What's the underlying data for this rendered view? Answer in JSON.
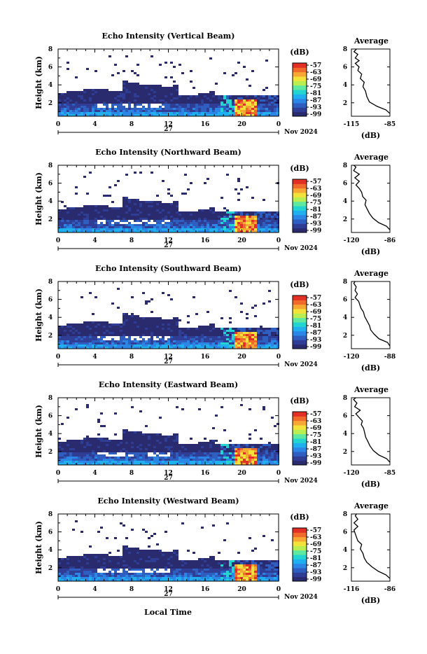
{
  "shared": {
    "day_label": "27",
    "month_year": "Nov 2024",
    "xlabel": "Local Time",
    "ylabel": "Height (km)",
    "unit": "(dB)",
    "avg_title": "Average",
    "x_ticks": [
      "0",
      "4",
      "8",
      "12",
      "16",
      "20",
      "0"
    ],
    "y_ticks": [
      "2",
      "4",
      "6",
      "8"
    ],
    "avg_y_ticks": [
      "2",
      "4",
      "6",
      "8"
    ],
    "colorbar_labels": [
      "-57",
      "-63",
      "-69",
      "-75",
      "-81",
      "-87",
      "-93",
      "-99"
    ],
    "colorbar_colors": [
      "#2a2a6e",
      "#2f3d95",
      "#2e5fc0",
      "#2c86e6",
      "#20b0f0",
      "#24d4d0",
      "#5fe8a0",
      "#b9ee52",
      "#f3e23a",
      "#f7a834",
      "#f06a2c",
      "#e23024"
    ]
  },
  "chart_data": [
    {
      "type": "heatmap",
      "title": "Echo Intensity (Vertical Beam)",
      "xlabel": "Local Time",
      "ylabel": "Height (km)",
      "xlim": [
        0,
        24
      ],
      "ylim": [
        0.5,
        8
      ],
      "colorbar": {
        "unit": "dB",
        "range": [
          -99,
          -57
        ]
      },
      "average": {
        "title": "Average",
        "xlabel": "(dB)",
        "x_ticks": [
          "-115",
          "-85"
        ],
        "xlim": [
          -115,
          -85
        ],
        "profile": [
          [
            -85,
            0.8
          ],
          [
            -88,
            1.2
          ],
          [
            -95,
            1.6
          ],
          [
            -101,
            2.1
          ],
          [
            -103,
            2.7
          ],
          [
            -104,
            3.3
          ],
          [
            -106,
            3.8
          ],
          [
            -105,
            4.3
          ],
          [
            -108,
            4.7
          ],
          [
            -107,
            5.2
          ],
          [
            -110,
            5.6
          ],
          [
            -109,
            6.0
          ],
          [
            -112,
            6.4
          ],
          [
            -109,
            6.7
          ],
          [
            -112,
            7.0
          ],
          [
            -110,
            7.4
          ],
          [
            -113,
            7.7
          ],
          [
            -111,
            8.0
          ]
        ]
      }
    },
    {
      "type": "heatmap",
      "title": "Echo Intensity (Northward Beam)",
      "xlabel": "Local Time",
      "ylabel": "Height (km)",
      "xlim": [
        0,
        24
      ],
      "ylim": [
        0.5,
        8
      ],
      "colorbar": {
        "unit": "dB",
        "range": [
          -99,
          -57
        ]
      },
      "average": {
        "title": "Average",
        "xlabel": "(dB)",
        "x_ticks": [
          "-120",
          "-86"
        ],
        "xlim": [
          -120,
          -86
        ],
        "profile": [
          [
            -86,
            0.8
          ],
          [
            -89,
            1.2
          ],
          [
            -96,
            1.6
          ],
          [
            -101,
            2.1
          ],
          [
            -104,
            2.6
          ],
          [
            -106,
            3.1
          ],
          [
            -108,
            3.6
          ],
          [
            -107,
            4.1
          ],
          [
            -110,
            4.5
          ],
          [
            -111,
            5.0
          ],
          [
            -113,
            5.4
          ],
          [
            -116,
            5.8
          ],
          [
            -113,
            6.2
          ],
          [
            -117,
            6.6
          ],
          [
            -113,
            7.0
          ],
          [
            -118,
            7.4
          ],
          [
            -116,
            7.8
          ],
          [
            -118,
            8.0
          ]
        ]
      }
    },
    {
      "type": "heatmap",
      "title": "Echo Intensity (Southward Beam)",
      "xlabel": "Local Time",
      "ylabel": "Height (km)",
      "xlim": [
        0,
        24
      ],
      "ylim": [
        0.5,
        8
      ],
      "colorbar": {
        "unit": "dB",
        "range": [
          -99,
          -57
        ]
      },
      "average": {
        "title": "Average",
        "xlabel": "(dB)",
        "x_ticks": [
          "-120",
          "-88"
        ],
        "xlim": [
          -120,
          -88
        ],
        "profile": [
          [
            -88,
            0.8
          ],
          [
            -90,
            1.2
          ],
          [
            -97,
            1.6
          ],
          [
            -101,
            2.1
          ],
          [
            -104,
            2.6
          ],
          [
            -105,
            3.1
          ],
          [
            -107,
            3.6
          ],
          [
            -109,
            4.1
          ],
          [
            -110,
            4.6
          ],
          [
            -112,
            5.0
          ],
          [
            -113,
            5.4
          ],
          [
            -114,
            5.8
          ],
          [
            -117,
            6.2
          ],
          [
            -115,
            6.6
          ],
          [
            -117,
            7.0
          ],
          [
            -116,
            7.4
          ],
          [
            -118,
            7.8
          ],
          [
            -117,
            8.0
          ]
        ]
      }
    },
    {
      "type": "heatmap",
      "title": "Echo Intensity (Eastward Beam)",
      "xlabel": "Local Time",
      "ylabel": "Height (km)",
      "xlim": [
        0,
        24
      ],
      "ylim": [
        0.5,
        8
      ],
      "colorbar": {
        "unit": "dB",
        "range": [
          -99,
          -57
        ]
      },
      "average": {
        "title": "Average",
        "xlabel": "(dB)",
        "x_ticks": [
          "-120",
          "-85"
        ],
        "xlim": [
          -120,
          -85
        ],
        "profile": [
          [
            -85,
            0.8
          ],
          [
            -88,
            1.2
          ],
          [
            -95,
            1.6
          ],
          [
            -100,
            2.1
          ],
          [
            -103,
            2.6
          ],
          [
            -105,
            3.1
          ],
          [
            -107,
            3.6
          ],
          [
            -108,
            4.1
          ],
          [
            -109,
            4.6
          ],
          [
            -111,
            5.0
          ],
          [
            -110,
            5.4
          ],
          [
            -113,
            5.8
          ],
          [
            -116,
            6.2
          ],
          [
            -112,
            6.6
          ],
          [
            -117,
            7.0
          ],
          [
            -115,
            7.4
          ],
          [
            -118,
            7.8
          ],
          [
            -116,
            8.0
          ]
        ]
      }
    },
    {
      "type": "heatmap",
      "title": "Echo Intensity (Westward Beam)",
      "xlabel": "Local Time",
      "ylabel": "Height (km)",
      "xlim": [
        0,
        24
      ],
      "ylim": [
        0.5,
        8
      ],
      "colorbar": {
        "unit": "dB",
        "range": [
          -99,
          -57
        ]
      },
      "average": {
        "title": "Average",
        "xlabel": "(dB)",
        "x_ticks": [
          "-116",
          "-86"
        ],
        "xlim": [
          -116,
          -86
        ],
        "profile": [
          [
            -86,
            0.8
          ],
          [
            -89,
            1.2
          ],
          [
            -95,
            1.6
          ],
          [
            -100,
            2.1
          ],
          [
            -104,
            2.6
          ],
          [
            -106,
            3.1
          ],
          [
            -107,
            3.6
          ],
          [
            -109,
            4.1
          ],
          [
            -108,
            4.6
          ],
          [
            -111,
            5.0
          ],
          [
            -112,
            5.4
          ],
          [
            -113,
            5.8
          ],
          [
            -114,
            6.2
          ],
          [
            -111,
            6.6
          ],
          [
            -114,
            7.0
          ],
          [
            -111,
            7.4
          ],
          [
            -113,
            7.8
          ],
          [
            -112,
            8.0
          ]
        ]
      }
    }
  ]
}
